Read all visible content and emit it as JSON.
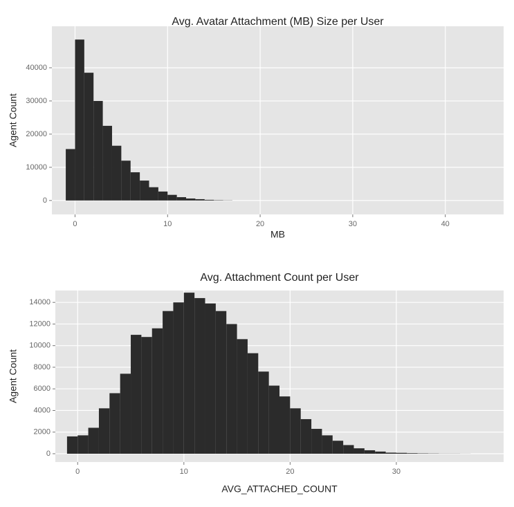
{
  "chart_data": [
    {
      "type": "histogram",
      "title": "Avg. Avatar Attachment (MB) Size per User",
      "x_label": "MB",
      "y_label": "Agent Count",
      "bins": [
        -1,
        0,
        1,
        2,
        3,
        4,
        5,
        6,
        7,
        8,
        9,
        10,
        11,
        12,
        13,
        14,
        15,
        16,
        17
      ],
      "values": [
        15500,
        48500,
        38500,
        30000,
        22500,
        16500,
        12000,
        8500,
        6000,
        4000,
        2700,
        1700,
        1000,
        600,
        400,
        200,
        100,
        50
      ],
      "color": "#2b2b2b",
      "xlim": [
        -2.5,
        46.3
      ],
      "xticks": [
        0,
        10,
        20,
        30,
        40
      ],
      "ylim": [
        -4200,
        52500
      ],
      "yticks": [
        0,
        10000,
        20000,
        30000,
        40000
      ],
      "grid": true
    },
    {
      "type": "histogram",
      "title": "Avg. Attachment Count per User",
      "x_label": "AVG_ATTACHED_COUNT",
      "y_label": "Agent Count",
      "bins": [
        -1,
        0,
        1,
        2,
        3,
        4,
        5,
        6,
        7,
        8,
        9,
        10,
        11,
        12,
        13,
        14,
        15,
        16,
        17,
        18,
        19,
        20,
        21,
        22,
        23,
        24,
        25,
        26,
        27,
        28,
        29,
        30,
        31,
        32,
        33,
        34,
        35,
        36,
        37
      ],
      "values": [
        1600,
        1700,
        2400,
        4200,
        5600,
        7400,
        11000,
        10800,
        11600,
        13200,
        14000,
        14900,
        14400,
        13900,
        13200,
        12000,
        10600,
        9300,
        7600,
        6300,
        5300,
        4200,
        3200,
        2300,
        1700,
        1200,
        800,
        500,
        320,
        200,
        100,
        80,
        50,
        30,
        20,
        10,
        10,
        5
      ],
      "color": "#2b2b2b",
      "xlim": [
        -2.1,
        40.1
      ],
      "xticks": [
        0,
        10,
        20,
        30
      ],
      "ylim": [
        -770,
        15100
      ],
      "yticks": [
        0,
        2000,
        4000,
        6000,
        8000,
        10000,
        12000,
        14000
      ],
      "grid": true
    }
  ]
}
